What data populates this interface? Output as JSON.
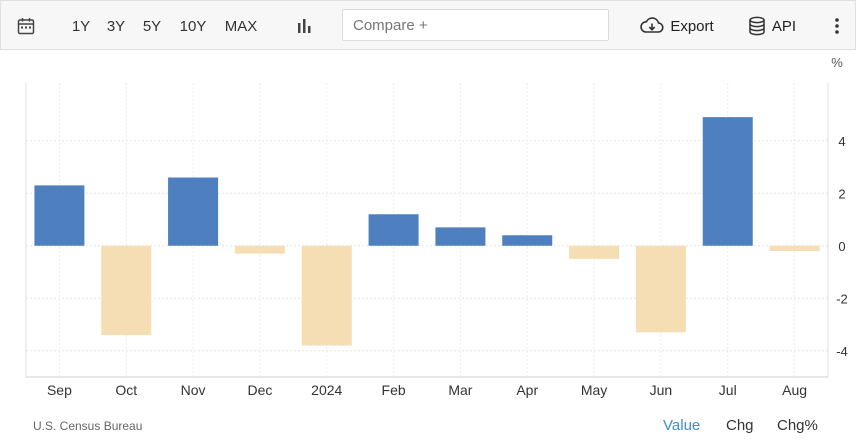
{
  "toolbar": {
    "ranges": [
      "1Y",
      "3Y",
      "5Y",
      "10Y",
      "MAX"
    ],
    "compare_placeholder": "Compare +",
    "export_label": "Export",
    "api_label": "API"
  },
  "footer": {
    "source": "U.S. Census Bureau",
    "tabs": [
      "Value",
      "Chg",
      "Chg%"
    ],
    "active_tab": "Value"
  },
  "colors": {
    "positive": "#4e80bf",
    "negative": "#f5deb3",
    "active_tab": "#3c8dcb"
  },
  "chart_data": {
    "type": "bar",
    "categories": [
      "Sep",
      "Oct",
      "Nov",
      "Dec",
      "2024",
      "Feb",
      "Mar",
      "Apr",
      "May",
      "Jun",
      "Jul",
      "Aug"
    ],
    "values": [
      2.3,
      -3.4,
      2.6,
      -0.3,
      -3.8,
      1.2,
      0.7,
      0.4,
      -0.5,
      -3.3,
      4.9,
      -0.2
    ],
    "unit_label": "%",
    "yticks": [
      4,
      2,
      0,
      -2,
      -4
    ],
    "ylim": [
      -5,
      6.2
    ],
    "grid": true
  }
}
